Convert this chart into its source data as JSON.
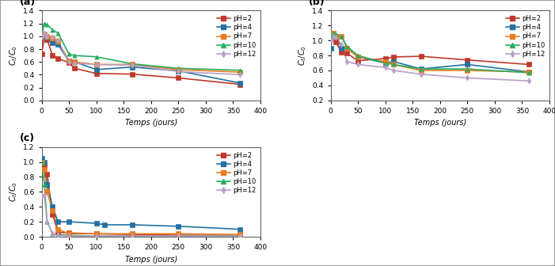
{
  "panel_labels": [
    "(a)",
    "(b)",
    "(c)"
  ],
  "xlabel": "Temps (jours)",
  "ylabel": "C_t/C_0",
  "ph_labels": [
    "pH=2",
    "pH=4",
    "pH=7",
    "pH=10",
    "pH=12"
  ],
  "ph_colors": [
    "#c0392b",
    "#2471a3",
    "#e67e22",
    "#27ae60",
    "#b8a0c8"
  ],
  "ph_markers": [
    "s",
    "s",
    "s",
    "^",
    "d"
  ],
  "panel_a": {
    "ph2": {
      "x": [
        0,
        5,
        10,
        20,
        30,
        50,
        60,
        100,
        165,
        250,
        363
      ],
      "y": [
        0.73,
        0.98,
        0.95,
        0.7,
        0.65,
        0.59,
        0.5,
        0.42,
        0.41,
        0.35,
        0.25
      ]
    },
    "ph4": {
      "x": [
        0,
        5,
        10,
        20,
        30,
        50,
        60,
        100,
        165,
        250,
        363
      ],
      "y": [
        1.0,
        1.0,
        0.98,
        0.9,
        0.87,
        0.61,
        0.6,
        0.48,
        0.52,
        0.46,
        0.27
      ]
    },
    "ph7": {
      "x": [
        0,
        5,
        10,
        20,
        30,
        50,
        60,
        100,
        165,
        250,
        363
      ],
      "y": [
        1.0,
        1.04,
        1.0,
        0.97,
        0.92,
        0.62,
        0.6,
        0.56,
        0.56,
        0.48,
        0.44
      ]
    },
    "ph10": {
      "x": [
        0,
        5,
        10,
        20,
        30,
        50,
        60,
        100,
        165,
        250,
        363
      ],
      "y": [
        1.0,
        1.2,
        1.18,
        1.1,
        1.05,
        0.72,
        0.7,
        0.68,
        0.57,
        0.5,
        0.47
      ]
    },
    "ph12": {
      "x": [
        0,
        5,
        10,
        20,
        30,
        50,
        60,
        100,
        165,
        250,
        363
      ],
      "y": [
        1.0,
        1.05,
        1.0,
        0.98,
        0.93,
        0.6,
        0.58,
        0.56,
        0.55,
        0.45,
        0.4
      ]
    },
    "ylim": [
      0.0,
      1.4
    ],
    "yticks": [
      0.0,
      0.2,
      0.4,
      0.6,
      0.8,
      1.0,
      1.2,
      1.4
    ]
  },
  "panel_b": {
    "ph2": {
      "x": [
        0,
        5,
        10,
        20,
        30,
        50,
        100,
        115,
        165,
        250,
        363
      ],
      "y": [
        1.1,
        1.07,
        0.98,
        0.84,
        0.83,
        0.73,
        0.76,
        0.78,
        0.79,
        0.74,
        0.68
      ]
    },
    "ph4": {
      "x": [
        0,
        5,
        10,
        20,
        30,
        50,
        100,
        115,
        165,
        250,
        363
      ],
      "y": [
        0.9,
        1.07,
        1.06,
        0.9,
        0.9,
        0.78,
        0.7,
        0.72,
        0.62,
        0.68,
        0.58
      ]
    },
    "ph7": {
      "x": [
        0,
        5,
        10,
        20,
        30,
        50,
        100,
        115,
        165,
        250,
        363
      ],
      "y": [
        1.1,
        1.1,
        1.06,
        1.05,
        0.9,
        0.78,
        0.72,
        0.68,
        0.6,
        0.6,
        0.58
      ]
    },
    "ph10": {
      "x": [
        0,
        5,
        10,
        20,
        30,
        50,
        100,
        115,
        165,
        250,
        363
      ],
      "y": [
        1.05,
        1.1,
        1.09,
        1.05,
        0.92,
        0.8,
        0.7,
        0.68,
        0.62,
        0.62,
        0.57
      ]
    },
    "ph12": {
      "x": [
        0,
        5,
        10,
        20,
        30,
        50,
        100,
        115,
        165,
        250,
        363
      ],
      "y": [
        1.0,
        1.05,
        1.04,
        0.95,
        0.72,
        0.68,
        0.64,
        0.6,
        0.55,
        0.5,
        0.46
      ]
    },
    "ylim": [
      0.2,
      1.4
    ],
    "yticks": [
      0.2,
      0.4,
      0.6,
      0.8,
      1.0,
      1.2,
      1.4
    ]
  },
  "panel_c": {
    "ph2": {
      "x": [
        0,
        5,
        10,
        20,
        30,
        50,
        100,
        165,
        250,
        363
      ],
      "y": [
        1.0,
        0.95,
        0.84,
        0.3,
        0.06,
        0.05,
        0.04,
        0.03,
        0.02,
        0.02
      ]
    },
    "ph4": {
      "x": [
        0,
        5,
        10,
        20,
        30,
        50,
        100,
        115,
        165,
        250,
        363
      ],
      "y": [
        1.05,
        1.0,
        0.7,
        0.4,
        0.2,
        0.2,
        0.18,
        0.16,
        0.16,
        0.14,
        0.1
      ]
    },
    "ph7": {
      "x": [
        0,
        5,
        10,
        20,
        30,
        50,
        100,
        165,
        250,
        363
      ],
      "y": [
        1.0,
        0.9,
        0.6,
        0.35,
        0.1,
        0.04,
        0.04,
        0.04,
        0.04,
        0.03
      ]
    },
    "ph10": {
      "x": [
        0,
        5,
        10,
        20,
        30,
        50,
        100,
        165,
        250,
        363
      ],
      "y": [
        1.0,
        0.7,
        0.2,
        0.04,
        0.03,
        0.02,
        0.01,
        0.01,
        0.01,
        0.01
      ]
    },
    "ph12": {
      "x": [
        0,
        5,
        10,
        20,
        30,
        50,
        100,
        165,
        250,
        363
      ],
      "y": [
        0.55,
        0.55,
        0.2,
        0.04,
        0.02,
        0.01,
        0.01,
        0.01,
        0.01,
        0.01
      ]
    },
    "ylim": [
      0.0,
      1.2
    ],
    "yticks": [
      0.0,
      0.2,
      0.4,
      0.6,
      0.8,
      1.0,
      1.2
    ]
  },
  "bg_color": "#ffffff",
  "fig_bg": "#ffffff",
  "border_color": "#cccccc"
}
